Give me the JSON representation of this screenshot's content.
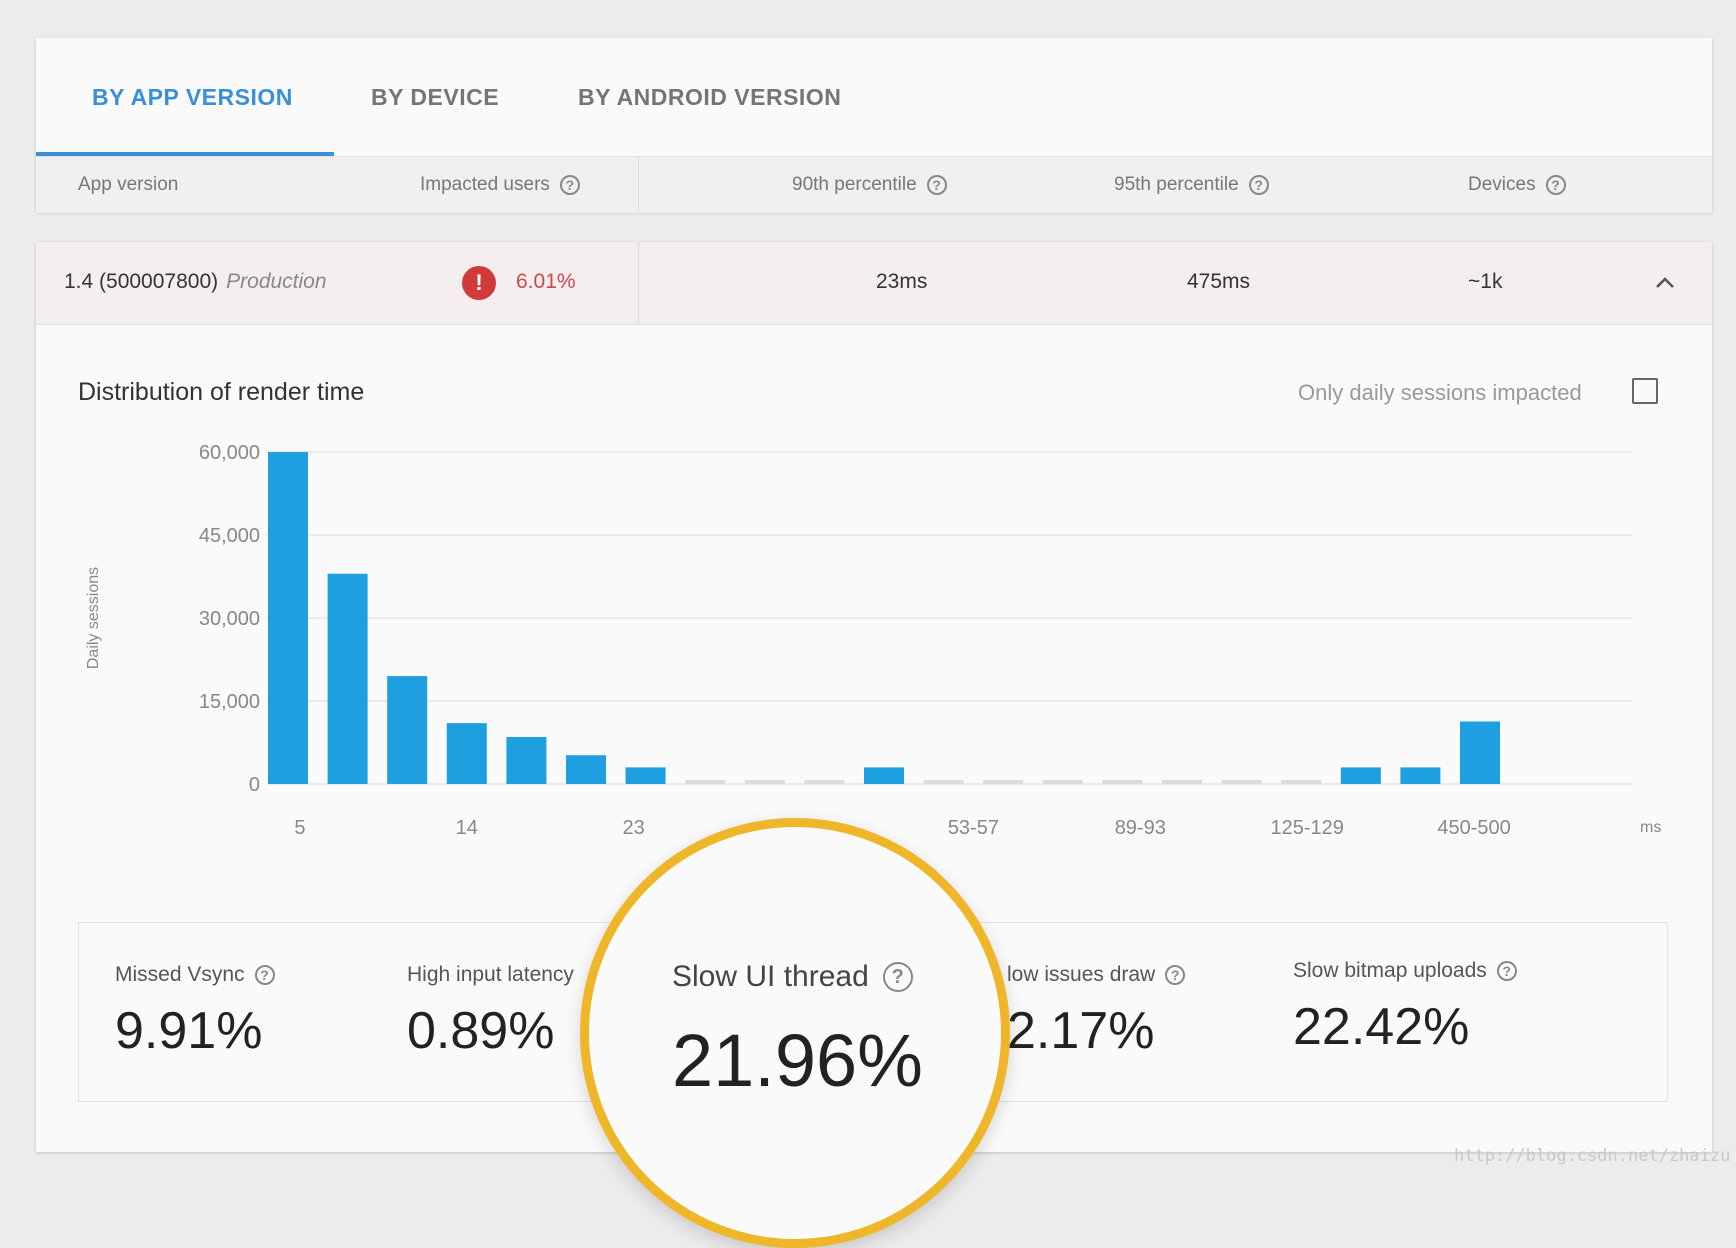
{
  "tabs": [
    {
      "label": "BY APP VERSION",
      "active": true
    },
    {
      "label": "BY DEVICE",
      "active": false
    },
    {
      "label": "BY ANDROID VERSION",
      "active": false
    }
  ],
  "columns": {
    "app_version": "App version",
    "impacted_users": "Impacted users",
    "p90": "90th percentile",
    "p95": "95th percentile",
    "devices": "Devices"
  },
  "row": {
    "version": "1.4 (500007800)",
    "track": "Production",
    "impacted": "6.01%",
    "p90": "23ms",
    "p95": "475ms",
    "devices": "~1k"
  },
  "section": {
    "title": "Distribution of render time",
    "checkbox_label": "Only daily sessions impacted"
  },
  "chart_data": {
    "type": "bar",
    "ylabel": "Daily sessions",
    "xunit": "ms",
    "ylim": [
      0,
      60000
    ],
    "yticks": [
      "60,000",
      "45,000",
      "30,000",
      "15,000",
      "0"
    ],
    "ytick_values": [
      60000,
      45000,
      30000,
      15000,
      0
    ],
    "xtick_labels": [
      {
        "label": "5",
        "index": 0.2
      },
      {
        "label": "14",
        "index": 3
      },
      {
        "label": "23",
        "index": 5.8
      },
      {
        "label": "53-57",
        "index": 11.5
      },
      {
        "label": "89-93",
        "index": 14.3
      },
      {
        "label": "125-129",
        "index": 17.1
      },
      {
        "label": "450-500",
        "index": 19.9
      }
    ],
    "values": [
      60000,
      38000,
      19500,
      11000,
      8500,
      5200,
      3000,
      400,
      400,
      400,
      3000,
      400,
      400,
      400,
      400,
      400,
      400,
      400,
      3000,
      3000,
      11300
    ],
    "highlighted": [
      true,
      true,
      true,
      true,
      true,
      true,
      true,
      false,
      false,
      false,
      true,
      false,
      false,
      false,
      false,
      false,
      false,
      false,
      true,
      true,
      true
    ],
    "bar_color": "#1ea0e0",
    "muted_color": "#dcdcdc",
    "grid": true
  },
  "stats": [
    {
      "label": "Missed Vsync",
      "value": "9.91%"
    },
    {
      "label": "High input latency",
      "value": "0.89%"
    },
    {
      "label": "low issues draw",
      "value": "2.17%"
    },
    {
      "label": "Slow bitmap uploads",
      "value": "22.42%"
    }
  ],
  "highlight": {
    "label": "Slow UI thread",
    "value": "21.96%",
    "ring_color": "#f0b62a"
  },
  "watermark": "http://blog.csdn.net/zhaizu"
}
